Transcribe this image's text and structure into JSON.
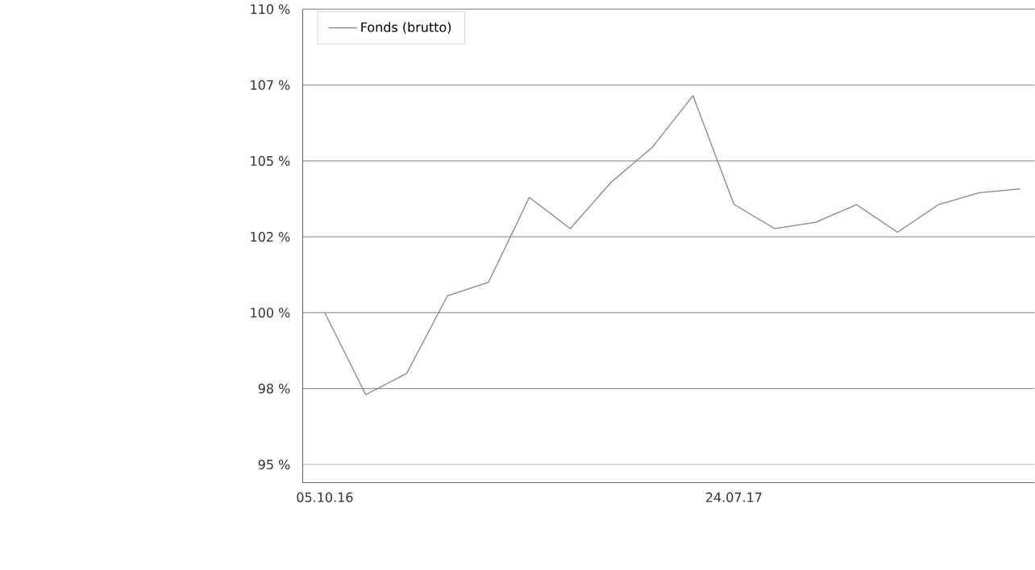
{
  "chart_data": {
    "type": "line",
    "categories": [
      "05.10.16",
      null,
      null,
      null,
      null,
      null,
      null,
      null,
      null,
      null,
      "24.07.17",
      null,
      null,
      null,
      null,
      null,
      null,
      null
    ],
    "series": [
      {
        "name": "Fonds (brutto)",
        "color": "#7a869e",
        "values": [
          100,
          97.3,
          98.0,
          100.56,
          101.0,
          103.8,
          102.77,
          104.3,
          105.44,
          107.15,
          103.57,
          102.77,
          102.98,
          103.56,
          102.65,
          103.56,
          103.95,
          104.08
        ]
      }
    ],
    "ylim": [
      94.4,
      110
    ],
    "yticks": [
      {
        "value": 95,
        "label": "95 %"
      },
      {
        "value": 97.5,
        "label": "98 %"
      },
      {
        "value": 100,
        "label": "100 %"
      },
      {
        "value": 102.5,
        "label": "102 %"
      },
      {
        "value": 105,
        "label": "105 %"
      },
      {
        "value": 107.5,
        "label": "107 %"
      },
      {
        "value": 110,
        "label": "110 %"
      }
    ],
    "grid": "y",
    "legend": "top left",
    "marker": "none",
    "line_style": "solid"
  }
}
